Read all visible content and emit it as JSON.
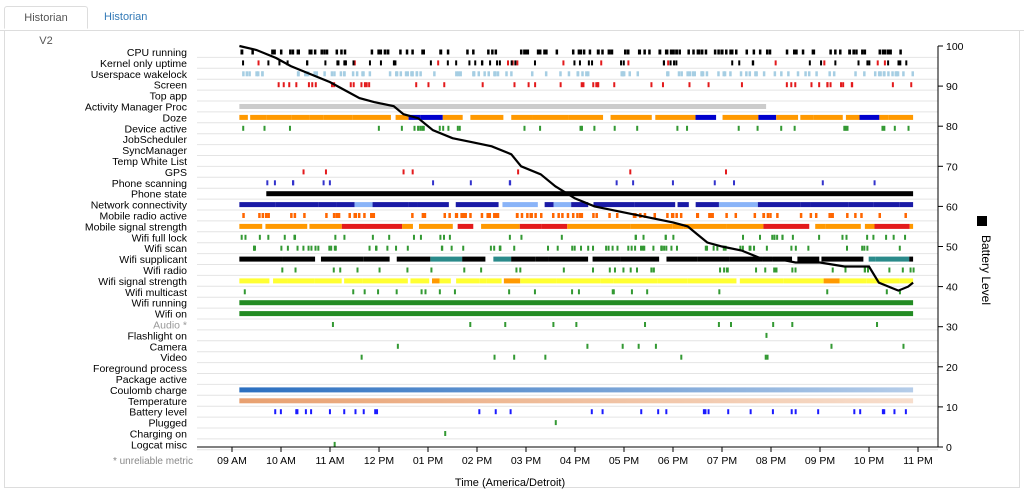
{
  "tabs": [
    {
      "label": "Historian V2",
      "active": true
    },
    {
      "label": "Historian",
      "active": false
    }
  ],
  "chart_data": {
    "type": "timeline",
    "xlabel": "Time (America/Detroit)",
    "ylabel_right": "Battery Level",
    "x_ticks": [
      "09 AM",
      "10 AM",
      "11 AM",
      "12 PM",
      "01 PM",
      "02 PM",
      "03 PM",
      "04 PM",
      "05 PM",
      "06 PM",
      "07 PM",
      "08 PM",
      "09 PM",
      "10 PM",
      "11 PM"
    ],
    "y_right_ticks": [
      0,
      10,
      20,
      30,
      40,
      50,
      60,
      70,
      80,
      90,
      100
    ],
    "y_right_range": [
      0,
      100
    ],
    "footnote": "* unreliable metric",
    "rows": [
      {
        "label": "CPU running",
        "color": "#000000",
        "style": "ticks",
        "density": 0.9
      },
      {
        "label": "Kernel only uptime",
        "color": "#000000",
        "style": "ticks",
        "density": 0.5,
        "alt": "#e31a1c"
      },
      {
        "label": "Userspace wakelock",
        "color": "#a6cee3",
        "style": "ticks",
        "density": 0.8
      },
      {
        "label": "Screen",
        "color": "#e31a1c",
        "style": "ticks",
        "density": 0.35
      },
      {
        "label": "Top app",
        "color": "#ffffff",
        "style": "none"
      },
      {
        "label": "Activity Manager Proc",
        "color": "#cccccc",
        "style": "bar",
        "start": 9.15,
        "end": 19.9
      },
      {
        "label": "Doze",
        "color": "#ff9900",
        "style": "blocks",
        "alt": "#0000cc"
      },
      {
        "label": "Device active",
        "color": "#339933",
        "style": "ticks",
        "density": 0.25
      },
      {
        "label": "JobScheduler",
        "color": "#ffffff",
        "style": "none"
      },
      {
        "label": "SyncManager",
        "color": "#ffffff",
        "style": "none"
      },
      {
        "label": "Temp White List",
        "color": "#ffffff",
        "style": "none"
      },
      {
        "label": "GPS",
        "color": "#e31a1c",
        "style": "ticks",
        "density": 0.05
      },
      {
        "label": "Phone scanning",
        "color": "#3333cc",
        "style": "ticks",
        "density": 0.12
      },
      {
        "label": "Phone state",
        "color": "#000000",
        "style": "bar",
        "start": 9.7,
        "end": 22.9
      },
      {
        "label": "Network connectivity",
        "color": "#1a1aa6",
        "style": "blocks",
        "alt": "#8ab4f8"
      },
      {
        "label": "Mobile radio active",
        "color": "#ff6600",
        "style": "ticks",
        "density": 0.7
      },
      {
        "label": "Mobile signal strength",
        "color": "#ff9900",
        "style": "blocks",
        "alt": "#e31a1c"
      },
      {
        "label": "Wifi full lock",
        "color": "#339933",
        "style": "ticks",
        "density": 0.3
      },
      {
        "label": "Wifi scan",
        "color": "#339933",
        "style": "ticks",
        "density": 0.55
      },
      {
        "label": "Wifi supplicant",
        "color": "#000000",
        "style": "blocks",
        "alt": "#2a8a8a"
      },
      {
        "label": "Wifi radio",
        "color": "#339933",
        "style": "ticks",
        "density": 0.3
      },
      {
        "label": "Wifi signal strength",
        "color": "#ffff33",
        "style": "blocks",
        "alt": "#ff9900"
      },
      {
        "label": "Wifi multicast",
        "color": "#339933",
        "style": "ticks",
        "density": 0.15
      },
      {
        "label": "Wifi running",
        "color": "#228b22",
        "style": "bar",
        "start": 9.15,
        "end": 22.9
      },
      {
        "label": "Wifi on",
        "color": "#228b22",
        "style": "bar",
        "start": 9.15,
        "end": 22.9
      },
      {
        "label": "Audio *",
        "color": "#339933",
        "style": "ticks",
        "density": 0.08,
        "unreliable": true
      },
      {
        "label": "Flashlight on",
        "color": "#339933",
        "style": "ticks",
        "density": 0.01
      },
      {
        "label": "Camera",
        "color": "#339933",
        "style": "ticks",
        "density": 0.05
      },
      {
        "label": "Video",
        "color": "#339933",
        "style": "ticks",
        "density": 0.05
      },
      {
        "label": "Foreground process",
        "color": "#ffffff",
        "style": "none"
      },
      {
        "label": "Package active",
        "color": "#ffffff",
        "style": "none"
      },
      {
        "label": "Coulomb charge",
        "color": "#2b6fc0",
        "style": "gradient",
        "start": 9.15,
        "end": 22.9
      },
      {
        "label": "Temperature",
        "color": "#e8a070",
        "style": "gradient",
        "start": 9.15,
        "end": 22.9
      },
      {
        "label": "Battery level",
        "color": "#1a1aff",
        "style": "ticks",
        "density": 0.25
      },
      {
        "label": "Plugged",
        "color": "#339933",
        "style": "ticks",
        "density": 0.003
      },
      {
        "label": "Charging on",
        "color": "#339933",
        "style": "ticks",
        "density": 0.003
      },
      {
        "label": "Logcat misc",
        "color": "#339933",
        "style": "ticks",
        "density": 0.003
      }
    ],
    "battery_series": {
      "name": "Battery Level",
      "x_hours": [
        9.15,
        9.5,
        9.9,
        10.2,
        10.6,
        11.0,
        11.3,
        11.6,
        11.9,
        12.3,
        12.5,
        12.8,
        13.1,
        13.5,
        13.9,
        14.3,
        14.7,
        14.9,
        15.3,
        15.6,
        16.0,
        16.4,
        16.8,
        17.2,
        17.6,
        18.0,
        18.3,
        18.5,
        18.7,
        19.0,
        19.4,
        19.8,
        20.1,
        20.5,
        21.0,
        21.5,
        22.0,
        22.2,
        22.4,
        22.6,
        22.8,
        22.9
      ],
      "y_percent": [
        100,
        99,
        97,
        95,
        93,
        91,
        89,
        87,
        86,
        85,
        83,
        82,
        79,
        77,
        76,
        75,
        73,
        70,
        68,
        65,
        62,
        60,
        59,
        58,
        57,
        56,
        55,
        53,
        51,
        50,
        49,
        47,
        47,
        46,
        46,
        45,
        45,
        41,
        40,
        39,
        40,
        41
      ]
    }
  }
}
